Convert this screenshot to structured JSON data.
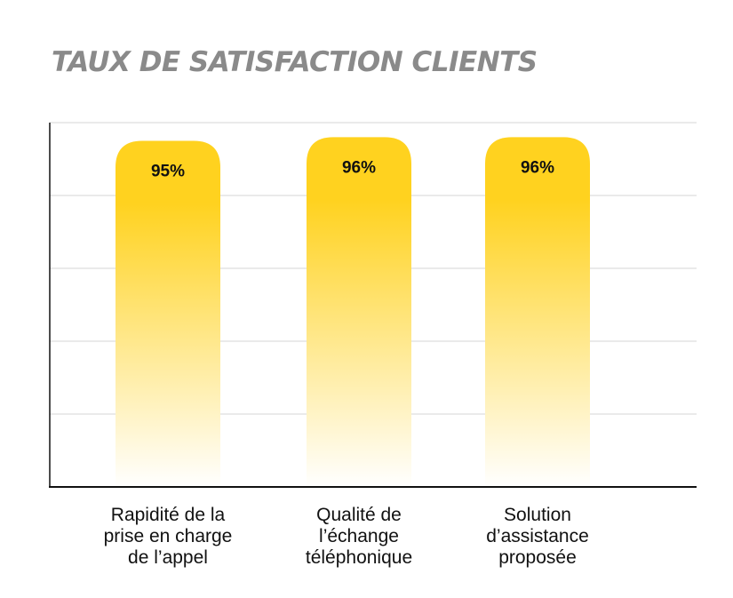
{
  "chart_data": {
    "type": "bar",
    "title": "TAUX DE SATISFACTION CLIENTS",
    "categories": [
      [
        "Rapidité de la",
        "prise en charge",
        "de l’appel"
      ],
      [
        "Qualité de",
        "l’échange",
        "téléphonique"
      ],
      [
        "Solution",
        "d’assistance",
        "proposée"
      ]
    ],
    "values": [
      95,
      96,
      96
    ],
    "value_labels": [
      "95%",
      "96%",
      "96%"
    ],
    "unit": "%",
    "xlabel": "",
    "ylabel": "",
    "ylim": [
      0,
      100
    ],
    "y_gridlines": [
      20,
      40,
      60,
      80
    ],
    "grid": true,
    "legend": "none",
    "colors": {
      "bar_top": "#FFD21F",
      "bar_bottom": "#FFFFFF",
      "title": "#8A8A8A",
      "gridline": "#D6D6D6",
      "axis": "#111111"
    }
  }
}
